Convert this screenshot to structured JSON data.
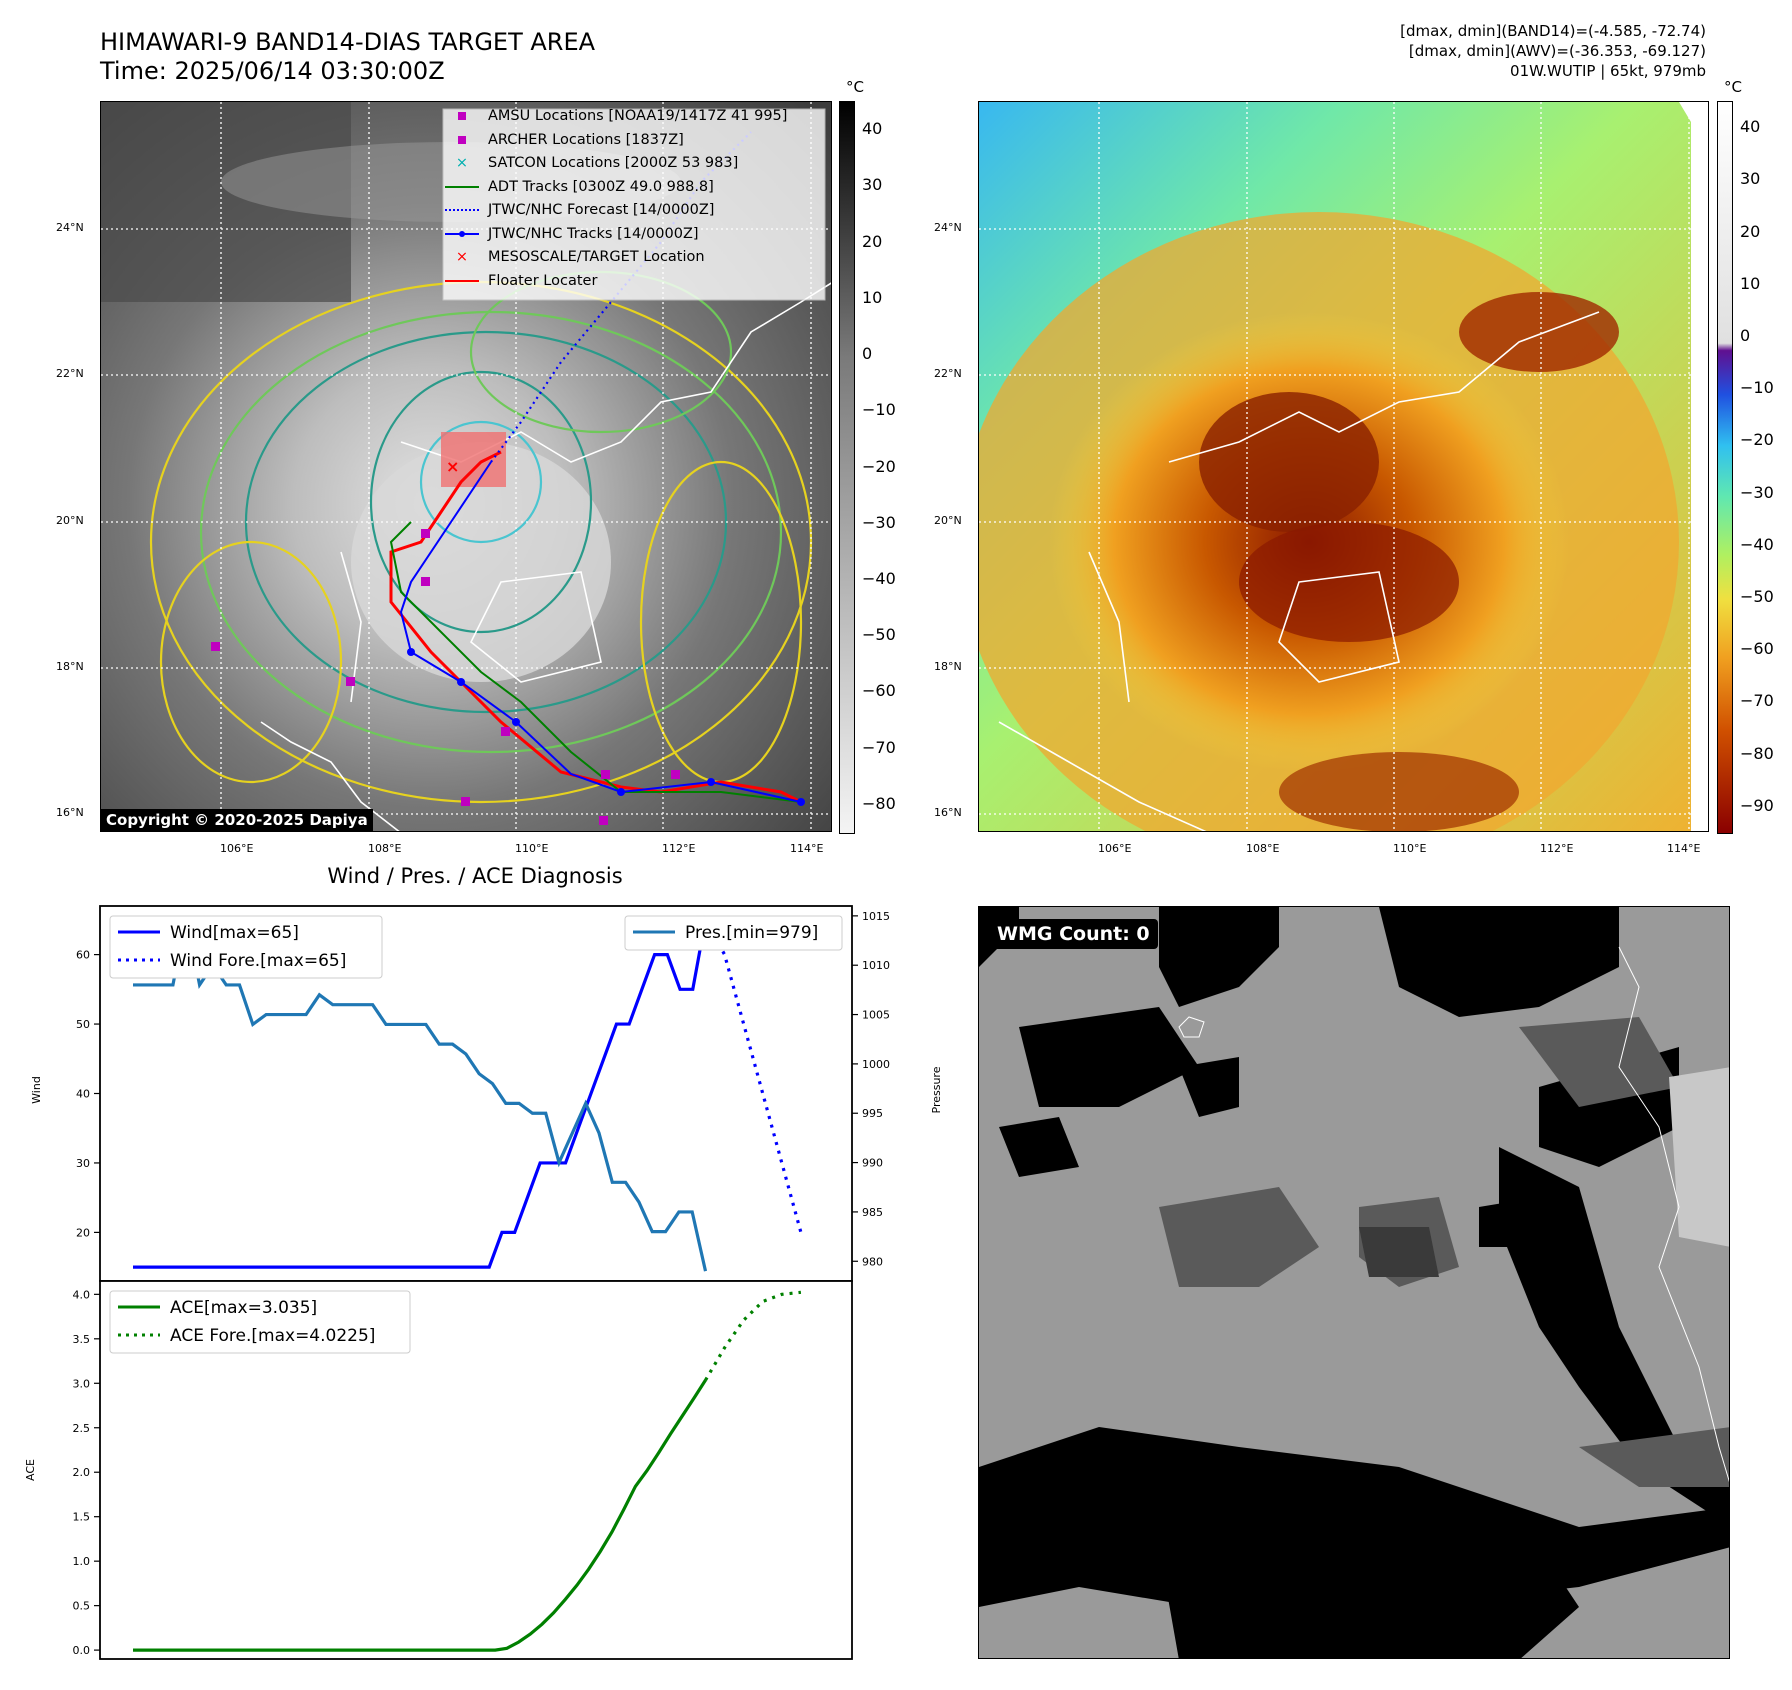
{
  "header": {
    "title_line1": "HIMAWARI-9 BAND14-DIAS TARGET AREA",
    "title_line2": "Time: 2025/06/14 03:30:00Z",
    "info_line1": "[dmax, dmin](BAND14)=(-4.585, -72.74)",
    "info_line2": "[dmax, dmin](AWV)=(-36.353, -69.127)",
    "info_line3": "01W.WUTIP | 65kt, 979mb"
  },
  "map_axes": {
    "lon_labels": [
      "106°E",
      "108°E",
      "110°E",
      "112°E",
      "114°E"
    ],
    "lat_labels": [
      "24°N",
      "22°N",
      "20°N",
      "18°N",
      "16°N"
    ]
  },
  "ir_panel": {
    "copyright": "Copyright © 2020-2025 Dapiya",
    "colorbar_unit": "°C",
    "colorbar_ticks": [
      "40",
      "30",
      "20",
      "10",
      "0",
      "−10",
      "−20",
      "−30",
      "−40",
      "−50",
      "−60",
      "−70",
      "−80"
    ],
    "legend": [
      {
        "label": "AMSU Locations [NOAA19/1417Z 41 995]",
        "color": "#c000c0",
        "marker": "square"
      },
      {
        "label": "ARCHER Locations [1837Z]",
        "color": "#c000c0",
        "marker": "square"
      },
      {
        "label": "SATCON Locations [2000Z 53 983]",
        "color": "#00b0b0",
        "marker": "x"
      },
      {
        "label": "ADT Tracks [0300Z 49.0 988.8]",
        "color": "#008000",
        "marker": "line"
      },
      {
        "label": "JTWC/NHC Forecast [14/0000Z]",
        "color": "#0000ff",
        "marker": "dotted"
      },
      {
        "label": "JTWC/NHC Tracks [14/0000Z]",
        "color": "#0000ff",
        "marker": "line-dot"
      },
      {
        "label": "MESOSCALE/TARGET Location",
        "color": "#ff0000",
        "marker": "x"
      },
      {
        "label": "Floater Locater",
        "color": "#ff0000",
        "marker": "line"
      }
    ]
  },
  "wv_panel": {
    "colorbar_unit": "°C",
    "colorbar_ticks": [
      "40",
      "30",
      "20",
      "10",
      "0",
      "−10",
      "−20",
      "−30",
      "−40",
      "−50",
      "−60",
      "−70",
      "−80",
      "−90"
    ]
  },
  "wmg_panel": {
    "label": "WMG Count: 0"
  },
  "chart_data": [
    {
      "type": "line",
      "title": "Wind / Pres. / ACE Diagnosis",
      "ylabel": "Wind",
      "ylabel_right": "Pressure",
      "ylim": [
        13,
        67
      ],
      "ylim_right": [
        978,
        1016
      ],
      "y_ticks": [
        20,
        30,
        40,
        50,
        60
      ],
      "y_ticks_right": [
        980,
        985,
        990,
        995,
        1000,
        1005,
        1010,
        1015
      ],
      "series": [
        {
          "name": "Wind[max=65]",
          "color": "#0000ff",
          "style": "solid",
          "axis": "left",
          "values": [
            15,
            15,
            15,
            15,
            15,
            15,
            15,
            15,
            15,
            15,
            15,
            15,
            15,
            15,
            15,
            15,
            15,
            15,
            15,
            15,
            15,
            15,
            15,
            15,
            15,
            15,
            15,
            15,
            15,
            20,
            20,
            25,
            30,
            30,
            30,
            35,
            40,
            45,
            50,
            50,
            55,
            60,
            60,
            55,
            55,
            65
          ]
        },
        {
          "name": "Wind Fore.[max=65]",
          "color": "#0000ff",
          "style": "dotted",
          "axis": "left",
          "values": [
            65,
            60,
            50,
            40,
            30,
            20
          ]
        },
        {
          "name": "Pres.[min=979]",
          "color": "#1f77b4",
          "style": "solid",
          "axis": "right",
          "values": [
            1008,
            1008,
            1008,
            1008,
            1015,
            1008,
            1010,
            1008,
            1008,
            1004,
            1005,
            1005,
            1005,
            1005,
            1007,
            1006,
            1006,
            1006,
            1006,
            1004,
            1004,
            1004,
            1004,
            1002,
            1002,
            1001,
            999,
            998,
            996,
            996,
            995,
            995,
            990,
            993,
            996,
            993,
            988,
            988,
            986,
            983,
            983,
            985,
            985,
            979
          ]
        }
      ]
    },
    {
      "type": "line",
      "ylabel": "ACE",
      "ylim": [
        -0.1,
        4.15
      ],
      "y_ticks": [
        0.0,
        0.5,
        1.0,
        1.5,
        2.0,
        2.5,
        3.0,
        3.5,
        4.0
      ],
      "series": [
        {
          "name": "ACE[max=3.035]",
          "color": "#008000",
          "style": "solid",
          "values": [
            0,
            0,
            0,
            0,
            0,
            0,
            0,
            0,
            0,
            0,
            0,
            0,
            0,
            0,
            0,
            0,
            0,
            0,
            0,
            0,
            0,
            0,
            0,
            0,
            0,
            0,
            0,
            0,
            0,
            0,
            0,
            0,
            0.02,
            0.09,
            0.18,
            0.29,
            0.42,
            0.57,
            0.73,
            0.91,
            1.11,
            1.33,
            1.58,
            1.84,
            2.02,
            2.22,
            2.43,
            2.63,
            2.83,
            3.035
          ]
        },
        {
          "name": "ACE Fore.[max=4.0225]",
          "color": "#008000",
          "style": "dotted",
          "values": [
            3.035,
            3.4,
            3.71,
            3.92,
            4.0,
            4.0225
          ]
        }
      ]
    }
  ]
}
